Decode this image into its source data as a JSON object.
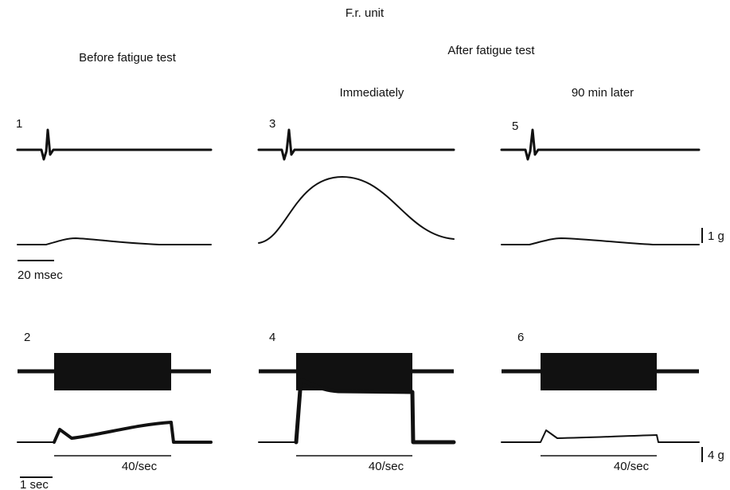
{
  "title": "F.r. unit",
  "headings": {
    "before": "Before fatigue test",
    "after": "After fatigue test",
    "immediately": "Immediately",
    "later": "90 min later"
  },
  "panels": [
    {
      "label": "1"
    },
    {
      "label": "2"
    },
    {
      "label": "3"
    },
    {
      "label": "4"
    },
    {
      "label": "5"
    },
    {
      "label": "6"
    }
  ],
  "scales": {
    "twitch_force": "1 g",
    "twitch_time": "20 msec",
    "tetanus_force": "4 g",
    "tetanus_time": "1 sec"
  },
  "stimulus_labels": [
    "40/sec",
    "40/sec",
    "40/sec"
  ]
}
